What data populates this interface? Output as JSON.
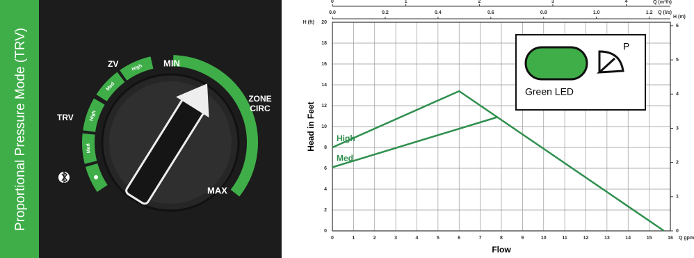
{
  "dial": {
    "side_label": "Proportional Pressure Mode (TRV)",
    "zv": "ZV",
    "trv": "TRV",
    "min": "MIN",
    "zone_circ": [
      "ZONE",
      "CIRC"
    ],
    "max": "MAX",
    "trv_segments": [
      "Med",
      "High"
    ],
    "zv_segments": [
      "Med",
      "High"
    ]
  },
  "chart_data": {
    "type": "line",
    "x_label": "Flow",
    "y_label": "Head in Feet",
    "x_unit": "Q gpm",
    "y_unit": "H (ft)",
    "y2_label": "H (m)",
    "x2_label": "Q (l/s)",
    "x3_label": "Q (m³/h)",
    "xlim": [
      0,
      16
    ],
    "xticks": [
      0,
      1,
      2,
      3,
      4,
      5,
      6,
      7,
      8,
      9,
      10,
      11,
      12,
      13,
      14,
      15,
      16
    ],
    "ylim": [
      0,
      20
    ],
    "yticks": [
      0,
      2,
      4,
      6,
      8,
      10,
      12,
      14,
      16,
      18,
      20
    ],
    "y2lim": [
      0,
      6.1
    ],
    "y2ticks": [
      0,
      1,
      2,
      3,
      4,
      5,
      6
    ],
    "x2lim": [
      0,
      1.28
    ],
    "x2ticks": [
      {
        "value": 0,
        "label": "0.0"
      },
      0.2,
      0.4,
      0.6,
      0.8,
      {
        "value": 1,
        "label": "1.0"
      },
      1.2
    ],
    "x3lim": [
      0,
      4.6
    ],
    "x3ticks": [
      0,
      1,
      2,
      3,
      4
    ],
    "grid": true,
    "series": [
      {
        "name": "High",
        "color": "#2f8f4e",
        "x": [
          0,
          6,
          15.7
        ],
        "values": [
          8,
          13.4,
          0
        ]
      },
      {
        "name": "Med",
        "color": "#2f8f4e",
        "x": [
          0,
          7.8
        ],
        "values": [
          6.1,
          10.9
        ]
      }
    ],
    "legend": {
      "label": "Green LED",
      "icon_label": "P"
    }
  }
}
